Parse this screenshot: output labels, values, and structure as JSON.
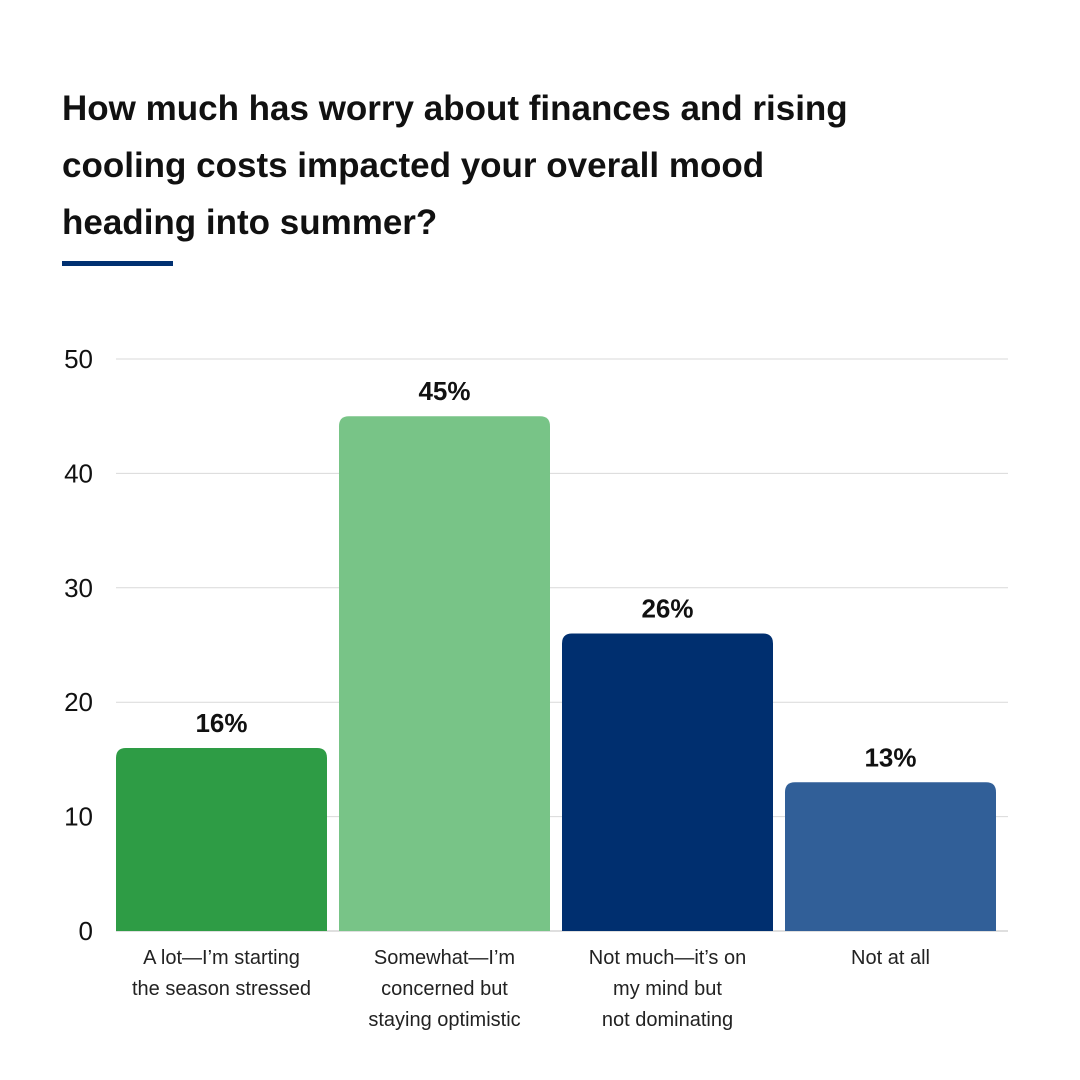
{
  "title_lines": [
    "How much has worry about finances and rising",
    "cooling costs impacted your overall mood",
    "heading into summer?"
  ],
  "colors": {
    "accent": "#003071",
    "bars": [
      "#2e9c45",
      "#78c487",
      "#002f6f",
      "#315f98"
    ],
    "grid": "#d9d9d9"
  },
  "chart_data": {
    "type": "bar",
    "categories": [
      [
        "A lot—I’m starting",
        "the season stressed"
      ],
      [
        "Somewhat—I’m",
        "concerned but",
        "staying optimistic"
      ],
      [
        "Not much—it’s on",
        "my mind but",
        "not dominating"
      ],
      [
        "Not at all"
      ]
    ],
    "values": [
      16,
      45,
      26,
      13
    ],
    "value_labels": [
      "16%",
      "45%",
      "26%",
      "13%"
    ],
    "yticks": [
      0,
      10,
      20,
      30,
      40,
      50
    ],
    "ylim": [
      0,
      50
    ],
    "grid": true
  }
}
